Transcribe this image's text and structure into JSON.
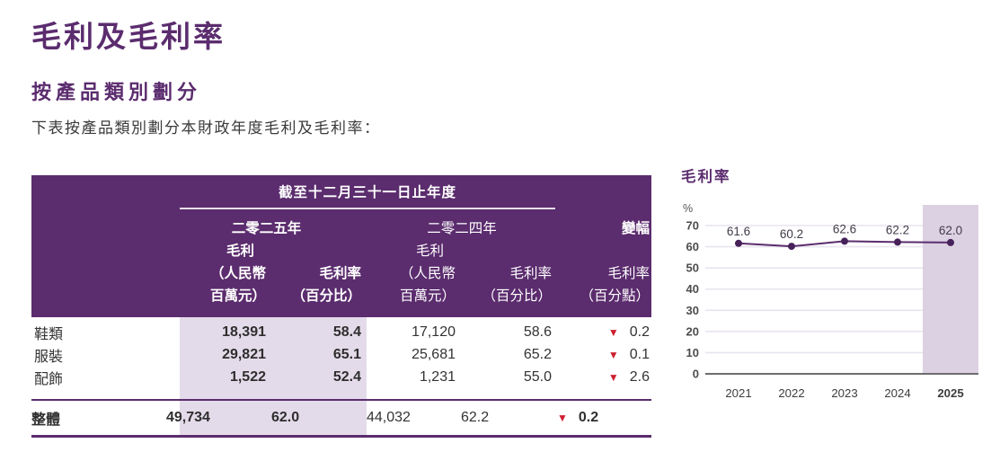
{
  "colors": {
    "purple": "#5B2C6E",
    "table_highlight": "#E4DBEA",
    "chart_highlight": "#DCD1E2",
    "red": "#CD2030",
    "gridline": "#E9E4EE",
    "baseline": "#6e6e6e"
  },
  "page": {
    "title": "毛利及毛利率",
    "section": "按產品類別劃分",
    "intro": "下表按產品類別劃分本財政年度毛利及毛利率："
  },
  "table": {
    "period_header": "截至十二月三十一日止年度",
    "groups": {
      "y2025": "二零二五年",
      "y2024": "二零二四年",
      "change": "變幅"
    },
    "subheads": {
      "gp": [
        "毛利",
        "（人民幣",
        "百萬元）"
      ],
      "gm": [
        "毛利率",
        "（百分比）"
      ],
      "chg": [
        "毛利率",
        "（百分點）"
      ]
    },
    "down_marker": "▼",
    "rows": [
      {
        "label": "鞋類",
        "gp2025": "18,391",
        "gm2025": "58.4",
        "gp2024": "17,120",
        "gm2024": "58.6",
        "change": "0.2"
      },
      {
        "label": "服裝",
        "gp2025": "29,821",
        "gm2025": "65.1",
        "gp2024": "25,681",
        "gm2024": "65.2",
        "change": "0.1"
      },
      {
        "label": "配飾",
        "gp2025": "1,522",
        "gm2025": "52.4",
        "gp2024": "1,231",
        "gm2024": "55.0",
        "change": "2.6"
      }
    ],
    "total": {
      "label": "整體",
      "gp2025": "49,734",
      "gm2025": "62.0",
      "gp2024": "44,032",
      "gm2024": "62.2",
      "change": "0.2"
    }
  },
  "chart_data": {
    "type": "line",
    "title": "毛利率",
    "ylabel": "%",
    "categories": [
      "2021",
      "2022",
      "2023",
      "2024",
      "2025"
    ],
    "values": [
      61.6,
      60.2,
      62.6,
      62.2,
      62.0
    ],
    "ylim": [
      0,
      70
    ],
    "yticks": [
      0,
      10,
      20,
      30,
      40,
      50,
      60,
      70
    ],
    "grid": true,
    "data_labels": true,
    "legend": "none",
    "highlight_category": "2025"
  }
}
